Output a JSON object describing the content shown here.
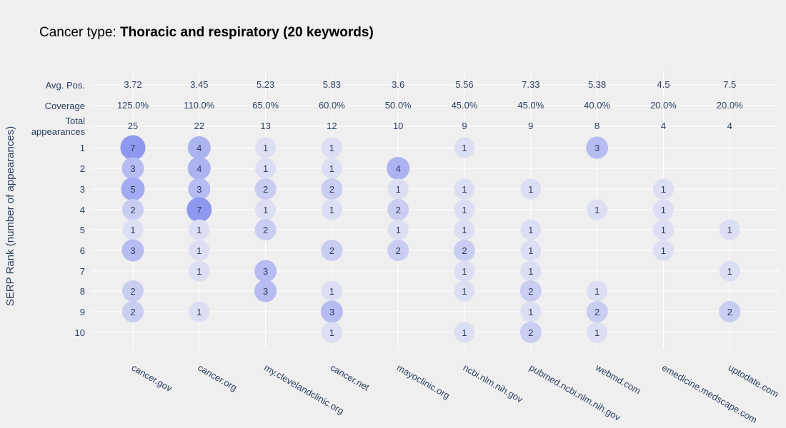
{
  "title_prefix": "Cancer type: ",
  "title_bold": "Thoracic and respiratory (20 keywords)",
  "chart_data": {
    "type": "scatter",
    "title": "Cancer type: Thoracic and respiratory (20 keywords)",
    "ylabel": "SERP Rank (number of appearances)",
    "categories": [
      "cancer.gov",
      "cancer.org",
      "my.clevelandclinic.org",
      "cancer.net",
      "mayoclinic.org",
      "ncbi.nlm.nih.gov",
      "pubmed.ncbi.nlm.nih.gov",
      "webmd.com",
      "emedicine.medscape.com",
      "uptodate.com"
    ],
    "summary_rows": [
      {
        "label": "Avg. Pos.",
        "values": [
          "3.72",
          "3.45",
          "5.23",
          "5.83",
          "3.6",
          "5.56",
          "7.33",
          "5.38",
          "4.5",
          "7.5"
        ]
      },
      {
        "label": "Coverage",
        "values": [
          "125.0%",
          "110.0%",
          "65.0%",
          "60.0%",
          "50.0%",
          "45.0%",
          "45.0%",
          "40.0%",
          "20.0%",
          "20.0%"
        ]
      },
      {
        "label": "Total appearances",
        "label_lines": [
          "Total",
          "appearances"
        ],
        "values": [
          "25",
          "22",
          "13",
          "12",
          "10",
          "9",
          "9",
          "8",
          "4",
          "4"
        ]
      }
    ],
    "ranks": [
      "1",
      "2",
      "3",
      "4",
      "5",
      "6",
      "7",
      "8",
      "9",
      "10"
    ],
    "counts": [
      [
        7,
        3,
        5,
        2,
        1,
        3,
        0,
        2,
        2,
        0
      ],
      [
        4,
        4,
        3,
        7,
        1,
        1,
        1,
        0,
        1,
        0
      ],
      [
        1,
        1,
        2,
        1,
        2,
        0,
        3,
        3,
        0,
        0
      ],
      [
        1,
        1,
        2,
        1,
        0,
        2,
        0,
        1,
        3,
        1
      ],
      [
        0,
        4,
        1,
        2,
        1,
        2,
        0,
        0,
        0,
        0
      ],
      [
        1,
        0,
        1,
        1,
        1,
        2,
        1,
        1,
        0,
        1
      ],
      [
        0,
        0,
        1,
        0,
        1,
        1,
        1,
        2,
        1,
        2
      ],
      [
        3,
        0,
        0,
        1,
        0,
        0,
        0,
        1,
        2,
        1
      ],
      [
        0,
        0,
        1,
        1,
        1,
        1,
        0,
        0,
        0,
        0
      ],
      [
        0,
        0,
        0,
        0,
        1,
        0,
        1,
        0,
        2,
        0
      ]
    ],
    "marker_colors": {
      "1": "#dcdef3",
      "2": "#c9cdf1",
      "3": "#b6bcf1",
      "4": "#acb3f1",
      "5": "#a2aaf1",
      "7": "#8e98ee"
    },
    "grid": true
  }
}
